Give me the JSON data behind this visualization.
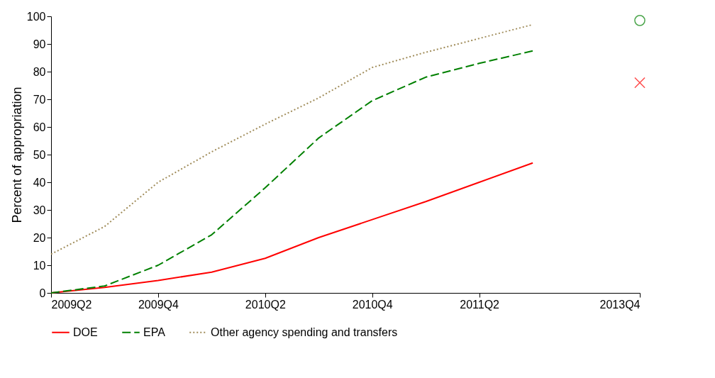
{
  "chart_data": {
    "type": "line",
    "ylabel": "Percent of appropriation",
    "categories": [
      "2009Q2",
      null,
      "2009Q4",
      null,
      "2010Q2",
      null,
      "2010Q4",
      null,
      "2011Q2",
      null,
      null,
      "2013Q4"
    ],
    "ylim": [
      0,
      100
    ],
    "yticks": [
      0,
      10,
      20,
      30,
      40,
      50,
      60,
      70,
      80,
      90,
      100
    ],
    "grid": false,
    "legend": "bottom",
    "series": [
      {
        "name": "DOE",
        "color": "#ff0000",
        "line_style": "solid",
        "values": [
          0,
          2,
          4.5,
          7.5,
          12.5,
          20,
          26.5,
          33,
          40,
          47,
          null,
          null
        ]
      },
      {
        "name": "EPA",
        "color": "#008000",
        "line_style": "dashed",
        "values": [
          0,
          2.5,
          10,
          21,
          38,
          56,
          69.5,
          78,
          83,
          87.5,
          null,
          null
        ]
      },
      {
        "name": "Other agency spending and transfers",
        "color": "#a08c5a",
        "line_style": "dotted",
        "values": [
          14,
          24,
          40,
          51,
          61,
          70.5,
          81.5,
          87,
          92,
          97,
          null,
          null
        ]
      },
      {
        "type": "scatter",
        "color": "#008000",
        "marker": "circle",
        "values": [
          null,
          null,
          null,
          null,
          null,
          null,
          null,
          null,
          null,
          null,
          null,
          98.5
        ]
      },
      {
        "type": "scatter",
        "color": "#ff0000",
        "marker": "cross",
        "values": [
          null,
          null,
          null,
          null,
          null,
          null,
          null,
          null,
          null,
          null,
          null,
          76
        ]
      }
    ]
  }
}
